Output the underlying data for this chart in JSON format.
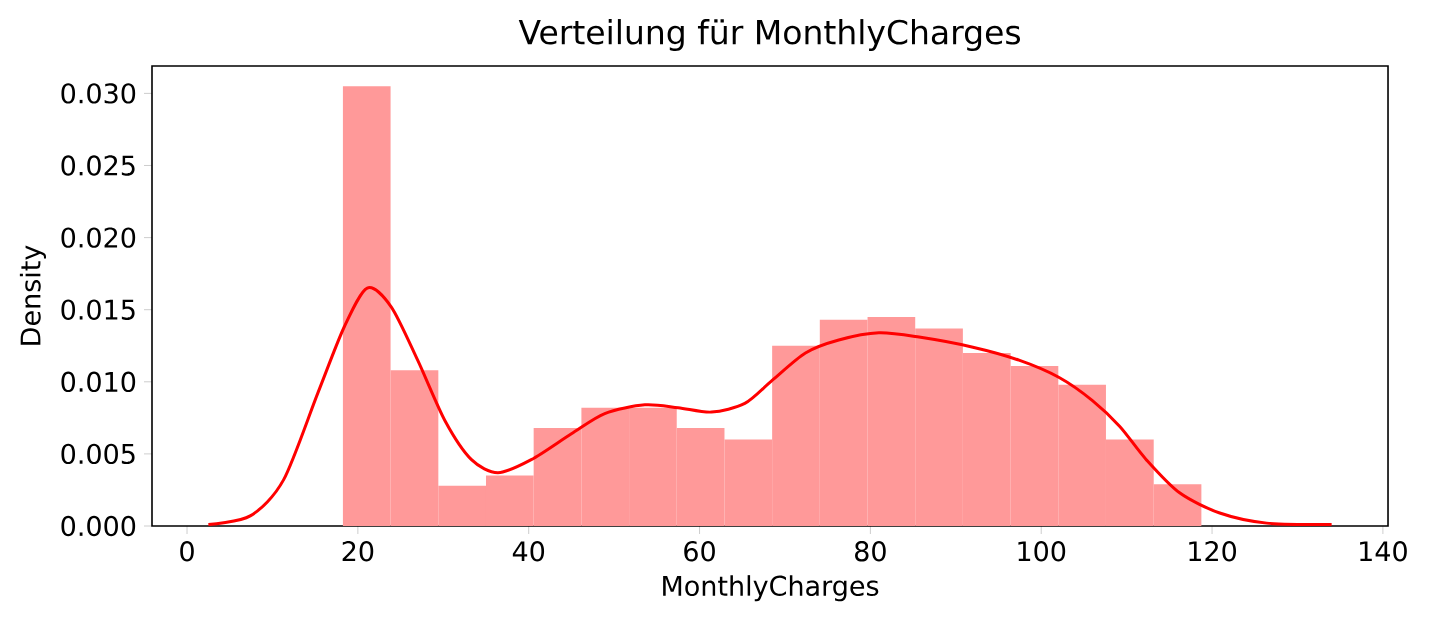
{
  "chart_data": {
    "type": "histogram",
    "title": "Verteilung für MonthlyCharges",
    "xlabel": "MonthlyCharges",
    "ylabel": "Density",
    "bins": [
      18.25,
      23.83,
      29.42,
      35.0,
      40.58,
      46.17,
      51.75,
      57.33,
      62.92,
      68.5,
      74.08,
      79.67,
      85.25,
      90.83,
      96.42,
      102.0,
      107.58,
      113.17,
      118.75
    ],
    "values": [
      0.0305,
      0.0108,
      0.0028,
      0.0035,
      0.0068,
      0.0082,
      0.0082,
      0.0068,
      0.006,
      0.0125,
      0.0143,
      0.0145,
      0.0137,
      0.012,
      0.0111,
      0.0098,
      0.006,
      0.0029
    ],
    "color": "#ff9999",
    "series": [
      {
        "type": "line",
        "color": "#ff0000",
        "x": [
          2.5,
          7.4,
          11.3,
          15.3,
          18.4,
          21.1,
          23.9,
          27.0,
          30.2,
          33.3,
          36.4,
          40.3,
          45.0,
          48.9,
          53.6,
          57.5,
          61.4,
          65.3,
          68.5,
          72.4,
          76.3,
          81.0,
          85.7,
          92.0,
          97.4,
          102.1,
          106.0,
          109.2,
          112.3,
          116.2,
          120.9,
          126.4,
          134.0
        ],
        "values": [
          0.0001,
          0.0007,
          0.0032,
          0.0092,
          0.0138,
          0.0165,
          0.0152,
          0.0115,
          0.0073,
          0.0046,
          0.0037,
          0.0046,
          0.0064,
          0.0078,
          0.0084,
          0.0082,
          0.0079,
          0.0085,
          0.0101,
          0.012,
          0.0129,
          0.0134,
          0.0131,
          0.0124,
          0.0115,
          0.0103,
          0.0087,
          0.0069,
          0.0046,
          0.0023,
          0.0009,
          0.0002,
          0.0001
        ]
      }
    ],
    "xlim": [
      -4.1,
      140.6
    ],
    "ylim": [
      0,
      0.0319
    ],
    "xticks": [
      0,
      20,
      40,
      60,
      80,
      100,
      120,
      140
    ],
    "yticks": [
      {
        "value": 0,
        "label": "0.000"
      },
      {
        "value": 0.005,
        "label": "0.005"
      },
      {
        "value": 0.01,
        "label": "0.010"
      },
      {
        "value": 0.015,
        "label": "0.015"
      },
      {
        "value": 0.02,
        "label": "0.020"
      },
      {
        "value": 0.025,
        "label": "0.025"
      },
      {
        "value": 0.03,
        "label": "0.030"
      }
    ],
    "line_style": "solid"
  }
}
